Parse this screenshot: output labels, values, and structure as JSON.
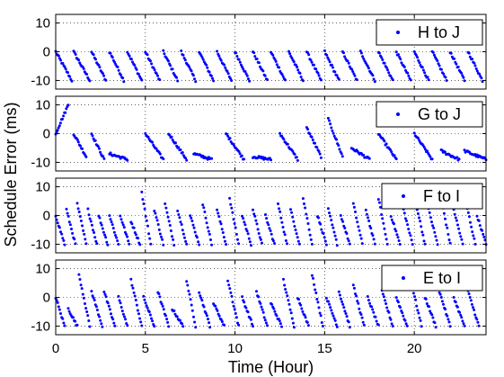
{
  "chart_data": {
    "type": "scatter",
    "xlabel": "Time (Hour)",
    "ylabel": "Schedule Error (ms)",
    "xlim": [
      0,
      24
    ],
    "ylim": [
      -13,
      13
    ],
    "x_ticks": [
      0,
      5,
      10,
      15,
      20
    ],
    "y_ticks": [
      10,
      0,
      -10
    ],
    "grid": true,
    "legend_placement": "top-right",
    "marker_color": "#0000ff",
    "panels": [
      {
        "legend": "H to J",
        "series_sawtooths": [
          {
            "x_start": 0.0,
            "x_end": 0.9,
            "y_start": 0,
            "y_end": -10
          },
          {
            "x_start": 1.0,
            "x_end": 1.9,
            "y_start": 0,
            "y_end": -10
          },
          {
            "x_start": 2.0,
            "x_end": 2.8,
            "y_start": 0,
            "y_end": -10
          },
          {
            "x_start": 3.0,
            "x_end": 3.8,
            "y_start": 0,
            "y_end": -10
          },
          {
            "x_start": 4.0,
            "x_end": 4.8,
            "y_start": 0,
            "y_end": -10
          },
          {
            "x_start": 5.0,
            "x_end": 5.8,
            "y_start": 0,
            "y_end": -10
          },
          {
            "x_start": 6.0,
            "x_end": 6.8,
            "y_start": 0,
            "y_end": -10
          },
          {
            "x_start": 7.0,
            "x_end": 7.8,
            "y_start": 0,
            "y_end": -10
          },
          {
            "x_start": 8.0,
            "x_end": 8.8,
            "y_start": 0,
            "y_end": -10
          },
          {
            "x_start": 9.0,
            "x_end": 9.8,
            "y_start": 0,
            "y_end": -10
          },
          {
            "x_start": 10.0,
            "x_end": 10.8,
            "y_start": 0,
            "y_end": -10
          },
          {
            "x_start": 11.0,
            "x_end": 11.8,
            "y_start": 0,
            "y_end": -10
          },
          {
            "x_start": 12.0,
            "x_end": 12.8,
            "y_start": 0,
            "y_end": -10
          },
          {
            "x_start": 13.0,
            "x_end": 13.8,
            "y_start": 0,
            "y_end": -10
          },
          {
            "x_start": 14.0,
            "x_end": 14.8,
            "y_start": 0,
            "y_end": -10
          },
          {
            "x_start": 15.0,
            "x_end": 15.8,
            "y_start": 0,
            "y_end": -10
          },
          {
            "x_start": 16.0,
            "x_end": 16.8,
            "y_start": 0,
            "y_end": -10
          },
          {
            "x_start": 17.0,
            "x_end": 17.8,
            "y_start": 0,
            "y_end": -10
          },
          {
            "x_start": 18.0,
            "x_end": 18.8,
            "y_start": 0,
            "y_end": -10
          },
          {
            "x_start": 19.0,
            "x_end": 19.8,
            "y_start": 0,
            "y_end": -10
          },
          {
            "x_start": 20.0,
            "x_end": 20.8,
            "y_start": 0,
            "y_end": -10
          },
          {
            "x_start": 21.0,
            "x_end": 21.8,
            "y_start": 0,
            "y_end": -10
          },
          {
            "x_start": 22.0,
            "x_end": 22.8,
            "y_start": 0,
            "y_end": -10
          },
          {
            "x_start": 23.0,
            "x_end": 23.8,
            "y_start": 0,
            "y_end": -10
          }
        ]
      },
      {
        "legend": "G to J",
        "series_sawtooths": [
          {
            "x_start": 0.0,
            "x_end": 0.7,
            "y_start": 0,
            "y_end": 10
          },
          {
            "x_start": 1.0,
            "x_end": 1.7,
            "y_start": 0,
            "y_end": -8
          },
          {
            "x_start": 2.0,
            "x_end": 2.7,
            "y_start": 0,
            "y_end": -9
          },
          {
            "x_start": 3.0,
            "x_end": 4.0,
            "y_start": -7,
            "y_end": -9
          },
          {
            "x_start": 5.0,
            "x_end": 6.0,
            "y_start": 0,
            "y_end": -9
          },
          {
            "x_start": 6.3,
            "x_end": 7.3,
            "y_start": 0,
            "y_end": -9
          },
          {
            "x_start": 7.7,
            "x_end": 8.7,
            "y_start": -7,
            "y_end": -9
          },
          {
            "x_start": 9.5,
            "x_end": 10.5,
            "y_start": 0,
            "y_end": -9
          },
          {
            "x_start": 11.0,
            "x_end": 12.0,
            "y_start": -8,
            "y_end": -9
          },
          {
            "x_start": 12.5,
            "x_end": 13.5,
            "y_start": 0,
            "y_end": -9
          },
          {
            "x_start": 14.0,
            "x_end": 14.8,
            "y_start": 2,
            "y_end": -8
          },
          {
            "x_start": 15.2,
            "x_end": 16.0,
            "y_start": 5,
            "y_end": -8
          },
          {
            "x_start": 16.5,
            "x_end": 17.5,
            "y_start": -5,
            "y_end": -9
          },
          {
            "x_start": 18.0,
            "x_end": 19.0,
            "y_start": 0,
            "y_end": -9
          },
          {
            "x_start": 20.0,
            "x_end": 21.0,
            "y_start": 0,
            "y_end": -9
          },
          {
            "x_start": 21.5,
            "x_end": 22.5,
            "y_start": -6,
            "y_end": -9
          },
          {
            "x_start": 22.8,
            "x_end": 24.0,
            "y_start": -6,
            "y_end": -9
          }
        ]
      },
      {
        "legend": "F to I",
        "series_sawtooths": [
          {
            "x_start": 0.0,
            "x_end": 0.5,
            "y_start": 0,
            "y_end": -10
          },
          {
            "x_start": 0.6,
            "x_end": 1.1,
            "y_start": 2,
            "y_end": -10
          },
          {
            "x_start": 1.2,
            "x_end": 1.7,
            "y_start": 4,
            "y_end": -10
          },
          {
            "x_start": 1.8,
            "x_end": 2.3,
            "y_start": 2,
            "y_end": -10
          },
          {
            "x_start": 2.4,
            "x_end": 2.9,
            "y_start": 0,
            "y_end": -10
          },
          {
            "x_start": 3.0,
            "x_end": 3.5,
            "y_start": 0,
            "y_end": -10
          },
          {
            "x_start": 3.6,
            "x_end": 4.1,
            "y_start": 0,
            "y_end": -10
          },
          {
            "x_start": 4.2,
            "x_end": 4.7,
            "y_start": -2,
            "y_end": -10
          },
          {
            "x_start": 4.8,
            "x_end": 5.3,
            "y_start": 8,
            "y_end": -10
          },
          {
            "x_start": 5.5,
            "x_end": 6.0,
            "y_start": 2,
            "y_end": -10
          },
          {
            "x_start": 6.1,
            "x_end": 6.6,
            "y_start": 4,
            "y_end": -10
          },
          {
            "x_start": 6.8,
            "x_end": 7.3,
            "y_start": 2,
            "y_end": -10
          },
          {
            "x_start": 7.5,
            "x_end": 8.0,
            "y_start": 0,
            "y_end": -10
          },
          {
            "x_start": 8.2,
            "x_end": 8.7,
            "y_start": 4,
            "y_end": -10
          },
          {
            "x_start": 9.0,
            "x_end": 9.5,
            "y_start": 2,
            "y_end": -10
          },
          {
            "x_start": 9.7,
            "x_end": 10.2,
            "y_start": 6,
            "y_end": -10
          },
          {
            "x_start": 10.4,
            "x_end": 10.9,
            "y_start": 0,
            "y_end": -10
          },
          {
            "x_start": 11.0,
            "x_end": 11.5,
            "y_start": 2,
            "y_end": -10
          },
          {
            "x_start": 11.7,
            "x_end": 12.2,
            "y_start": 0,
            "y_end": -10
          },
          {
            "x_start": 12.4,
            "x_end": 12.9,
            "y_start": 4,
            "y_end": -10
          },
          {
            "x_start": 13.1,
            "x_end": 13.6,
            "y_start": 2,
            "y_end": -10
          },
          {
            "x_start": 13.8,
            "x_end": 14.3,
            "y_start": 6,
            "y_end": -10
          },
          {
            "x_start": 14.6,
            "x_end": 15.1,
            "y_start": 0,
            "y_end": -10
          },
          {
            "x_start": 15.2,
            "x_end": 15.7,
            "y_start": 2,
            "y_end": -10
          },
          {
            "x_start": 15.9,
            "x_end": 16.4,
            "y_start": 0,
            "y_end": -10
          },
          {
            "x_start": 16.6,
            "x_end": 17.1,
            "y_start": 4,
            "y_end": -10
          },
          {
            "x_start": 17.3,
            "x_end": 17.8,
            "y_start": 2,
            "y_end": -10
          },
          {
            "x_start": 18.0,
            "x_end": 18.5,
            "y_start": 6,
            "y_end": -10
          },
          {
            "x_start": 18.7,
            "x_end": 19.2,
            "y_start": 0,
            "y_end": -10
          },
          {
            "x_start": 19.4,
            "x_end": 19.9,
            "y_start": 2,
            "y_end": -10
          },
          {
            "x_start": 20.1,
            "x_end": 20.6,
            "y_start": 4,
            "y_end": -10
          },
          {
            "x_start": 20.8,
            "x_end": 21.3,
            "y_start": 2,
            "y_end": -10
          },
          {
            "x_start": 21.5,
            "x_end": 22.0,
            "y_start": 6,
            "y_end": -10
          },
          {
            "x_start": 22.2,
            "x_end": 22.7,
            "y_start": 2,
            "y_end": -10
          },
          {
            "x_start": 22.9,
            "x_end": 23.4,
            "y_start": 4,
            "y_end": -10
          },
          {
            "x_start": 23.5,
            "x_end": 24.0,
            "y_start": 0,
            "y_end": -10
          }
        ]
      },
      {
        "legend": "E to I",
        "series_sawtooths": [
          {
            "x_start": 0.0,
            "x_end": 0.5,
            "y_start": 0,
            "y_end": -10
          },
          {
            "x_start": 0.7,
            "x_end": 1.2,
            "y_start": -4,
            "y_end": -10
          },
          {
            "x_start": 1.3,
            "x_end": 1.9,
            "y_start": 8,
            "y_end": -10
          },
          {
            "x_start": 2.0,
            "x_end": 2.6,
            "y_start": 2,
            "y_end": -10
          },
          {
            "x_start": 2.7,
            "x_end": 3.3,
            "y_start": 2,
            "y_end": -10
          },
          {
            "x_start": 3.5,
            "x_end": 4.0,
            "y_start": 0,
            "y_end": -10
          },
          {
            "x_start": 4.2,
            "x_end": 4.8,
            "y_start": 6,
            "y_end": -10
          },
          {
            "x_start": 4.9,
            "x_end": 5.5,
            "y_start": 0,
            "y_end": -10
          },
          {
            "x_start": 5.7,
            "x_end": 6.3,
            "y_start": 2,
            "y_end": -10
          },
          {
            "x_start": 6.5,
            "x_end": 7.1,
            "y_start": -4,
            "y_end": -10
          },
          {
            "x_start": 7.3,
            "x_end": 7.8,
            "y_start": 6,
            "y_end": -10
          },
          {
            "x_start": 8.0,
            "x_end": 8.6,
            "y_start": 2,
            "y_end": -10
          },
          {
            "x_start": 8.8,
            "x_end": 9.4,
            "y_start": -2,
            "y_end": -10
          },
          {
            "x_start": 9.6,
            "x_end": 10.2,
            "y_start": 6,
            "y_end": -10
          },
          {
            "x_start": 10.4,
            "x_end": 11.0,
            "y_start": 0,
            "y_end": -10
          },
          {
            "x_start": 11.2,
            "x_end": 11.8,
            "y_start": 2,
            "y_end": -10
          },
          {
            "x_start": 12.0,
            "x_end": 12.6,
            "y_start": -2,
            "y_end": -10
          },
          {
            "x_start": 12.7,
            "x_end": 13.3,
            "y_start": 6,
            "y_end": -10
          },
          {
            "x_start": 13.5,
            "x_end": 14.1,
            "y_start": 0,
            "y_end": -10
          },
          {
            "x_start": 14.3,
            "x_end": 14.9,
            "y_start": 8,
            "y_end": -10
          },
          {
            "x_start": 15.1,
            "x_end": 15.7,
            "y_start": 0,
            "y_end": -10
          },
          {
            "x_start": 15.8,
            "x_end": 16.4,
            "y_start": 2,
            "y_end": -10
          },
          {
            "x_start": 16.6,
            "x_end": 17.2,
            "y_start": 4,
            "y_end": -10
          },
          {
            "x_start": 17.4,
            "x_end": 18.0,
            "y_start": 0,
            "y_end": -10
          },
          {
            "x_start": 18.2,
            "x_end": 18.8,
            "y_start": 2,
            "y_end": -10
          },
          {
            "x_start": 19.0,
            "x_end": 19.6,
            "y_start": 0,
            "y_end": -10
          },
          {
            "x_start": 19.8,
            "x_end": 20.4,
            "y_start": 6,
            "y_end": -10
          },
          {
            "x_start": 20.6,
            "x_end": 21.2,
            "y_start": 0,
            "y_end": -10
          },
          {
            "x_start": 21.4,
            "x_end": 22.0,
            "y_start": 2,
            "y_end": -10
          },
          {
            "x_start": 22.2,
            "x_end": 22.8,
            "y_start": 0,
            "y_end": -10
          },
          {
            "x_start": 23.0,
            "x_end": 23.6,
            "y_start": 2,
            "y_end": -10
          }
        ]
      }
    ]
  }
}
